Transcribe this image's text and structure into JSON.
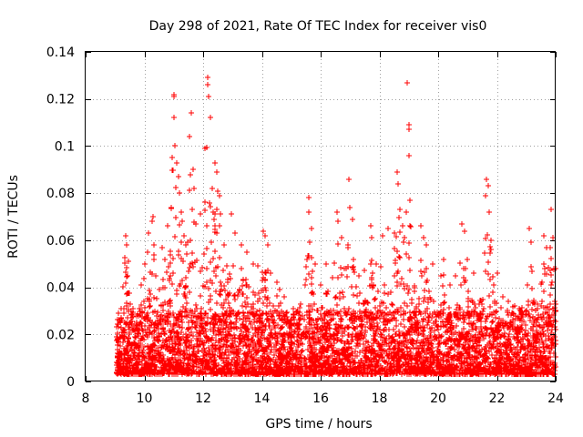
{
  "chart_data": {
    "type": "scatter",
    "title": "Day 298 of 2021, Rate Of TEC Index for receiver vis0",
    "xlabel": "GPS time / hours",
    "ylabel": "ROTI / TECUs",
    "xlim": [
      8,
      24
    ],
    "ylim": [
      0,
      0.14
    ],
    "x_ticks": [
      8,
      10,
      12,
      14,
      16,
      18,
      20,
      22,
      24
    ],
    "x_tick_labels": [
      "8",
      "10",
      "12",
      "14",
      "16",
      "18",
      "20",
      "22",
      "24"
    ],
    "y_ticks": [
      0,
      0.02,
      0.04,
      0.06,
      0.08,
      0.1,
      0.12,
      0.14
    ],
    "y_tick_labels": [
      "0",
      "0.02",
      "0.04",
      "0.06",
      "0.08",
      "0.1",
      "0.12",
      "0.14"
    ],
    "grid": true,
    "marker": "plus",
    "color": "#ff0000",
    "series": [
      {
        "name": "vis0",
        "points": [
          [
            9.1,
            0.018
          ],
          [
            9.2,
            0.026
          ],
          [
            9.3,
            0.031
          ],
          [
            9.35,
            0.062
          ],
          [
            9.4,
            0.058
          ],
          [
            9.45,
            0.051
          ],
          [
            9.5,
            0.022
          ],
          [
            9.7,
            0.015
          ],
          [
            9.8,
            0.028
          ],
          [
            9.9,
            0.041
          ],
          [
            10.0,
            0.05
          ],
          [
            10.1,
            0.055
          ],
          [
            10.15,
            0.063
          ],
          [
            10.25,
            0.068
          ],
          [
            10.3,
            0.07
          ],
          [
            10.4,
            0.045
          ],
          [
            10.5,
            0.039
          ],
          [
            10.6,
            0.057
          ],
          [
            10.7,
            0.052
          ],
          [
            10.8,
            0.066
          ],
          [
            10.9,
            0.074
          ],
          [
            10.95,
            0.095
          ],
          [
            11.0,
            0.122
          ],
          [
            11.0,
            0.121
          ],
          [
            11.0,
            0.112
          ],
          [
            11.05,
            0.1
          ],
          [
            11.1,
            0.093
          ],
          [
            11.15,
            0.087
          ],
          [
            11.2,
            0.08
          ],
          [
            11.25,
            0.072
          ],
          [
            11.3,
            0.068
          ],
          [
            11.35,
            0.062
          ],
          [
            11.4,
            0.058
          ],
          [
            11.45,
            0.054
          ],
          [
            11.55,
            0.104
          ],
          [
            11.6,
            0.114
          ],
          [
            11.65,
            0.09
          ],
          [
            11.7,
            0.082
          ],
          [
            11.75,
            0.067
          ],
          [
            11.9,
            0.071
          ],
          [
            12.05,
            0.099
          ],
          [
            12.15,
            0.129
          ],
          [
            12.15,
            0.126
          ],
          [
            12.2,
            0.121
          ],
          [
            12.25,
            0.112
          ],
          [
            12.3,
            0.082
          ],
          [
            12.35,
            0.072
          ],
          [
            12.4,
            0.093
          ],
          [
            12.45,
            0.089
          ],
          [
            12.5,
            0.081
          ],
          [
            12.55,
            0.079
          ],
          [
            12.6,
            0.071
          ],
          [
            12.7,
            0.058
          ],
          [
            12.8,
            0.049
          ],
          [
            12.95,
            0.071
          ],
          [
            13.1,
            0.063
          ],
          [
            13.3,
            0.058
          ],
          [
            13.5,
            0.055
          ],
          [
            13.7,
            0.05
          ],
          [
            13.85,
            0.049
          ],
          [
            14.05,
            0.064
          ],
          [
            14.1,
            0.062
          ],
          [
            14.2,
            0.058
          ],
          [
            14.3,
            0.046
          ],
          [
            14.5,
            0.042
          ],
          [
            14.6,
            0.039
          ],
          [
            14.75,
            0.036
          ],
          [
            15.0,
            0.024
          ],
          [
            15.3,
            0.022
          ],
          [
            15.6,
            0.078
          ],
          [
            15.6,
            0.072
          ],
          [
            15.7,
            0.065
          ],
          [
            15.8,
            0.05
          ],
          [
            16.0,
            0.041
          ],
          [
            16.2,
            0.05
          ],
          [
            16.4,
            0.044
          ],
          [
            16.55,
            0.072
          ],
          [
            16.6,
            0.068
          ],
          [
            16.7,
            0.061
          ],
          [
            16.8,
            0.048
          ],
          [
            16.95,
            0.086
          ],
          [
            17.0,
            0.074
          ],
          [
            17.1,
            0.069
          ],
          [
            17.3,
            0.045
          ],
          [
            17.5,
            0.047
          ],
          [
            17.7,
            0.066
          ],
          [
            17.75,
            0.061
          ],
          [
            17.9,
            0.05
          ],
          [
            18.1,
            0.062
          ],
          [
            18.3,
            0.065
          ],
          [
            18.5,
            0.063
          ],
          [
            18.6,
            0.089
          ],
          [
            18.65,
            0.084
          ],
          [
            18.7,
            0.073
          ],
          [
            18.8,
            0.066
          ],
          [
            18.95,
            0.127
          ],
          [
            19.0,
            0.109
          ],
          [
            19.0,
            0.107
          ],
          [
            19.0,
            0.096
          ],
          [
            19.05,
            0.077
          ],
          [
            19.1,
            0.035
          ],
          [
            19.3,
            0.025
          ],
          [
            19.4,
            0.066
          ],
          [
            19.5,
            0.061
          ],
          [
            19.6,
            0.058
          ],
          [
            19.8,
            0.05
          ],
          [
            20.1,
            0.045
          ],
          [
            20.2,
            0.052
          ],
          [
            20.4,
            0.041
          ],
          [
            20.6,
            0.045
          ],
          [
            20.8,
            0.067
          ],
          [
            20.9,
            0.064
          ],
          [
            21.0,
            0.052
          ],
          [
            21.2,
            0.046
          ],
          [
            21.4,
            0.033
          ],
          [
            21.6,
            0.079
          ],
          [
            21.65,
            0.086
          ],
          [
            21.7,
            0.083
          ],
          [
            21.75,
            0.072
          ],
          [
            21.8,
            0.06
          ],
          [
            21.9,
            0.041
          ],
          [
            22.0,
            0.046
          ],
          [
            22.2,
            0.036
          ],
          [
            22.4,
            0.034
          ],
          [
            22.6,
            0.032
          ],
          [
            22.8,
            0.03
          ],
          [
            23.0,
            0.03
          ],
          [
            23.1,
            0.065
          ],
          [
            23.15,
            0.059
          ],
          [
            23.3,
            0.033
          ],
          [
            23.5,
            0.032
          ],
          [
            23.6,
            0.062
          ],
          [
            23.7,
            0.057
          ],
          [
            23.85,
            0.073
          ],
          [
            23.9,
            0.061
          ],
          [
            23.95,
            0.048
          ],
          [
            24.0,
            0.048
          ],
          [
            24.0,
            0.016
          ]
        ]
      }
    ],
    "background_cloud": {
      "x_range": [
        9.05,
        24.0
      ],
      "dense_band": [
        0.003,
        0.03
      ],
      "note": "thousands of samples concentrated below 0.03 TECU/s with episodic excursions"
    }
  }
}
